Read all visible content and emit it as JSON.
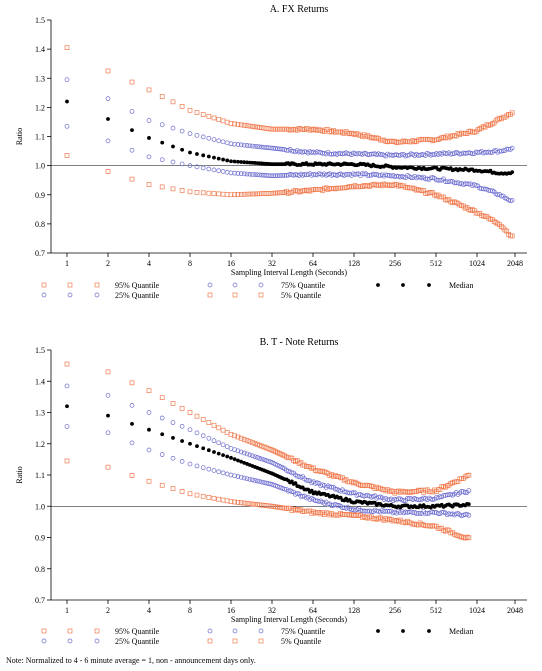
{
  "footnote": "Note: Normalized to 4 - 6 minute average = 1, non - announcement days only.",
  "colors": {
    "q95": "#f07c50",
    "q5": "#f07c50",
    "q25": "#6a6ad0",
    "q75": "#6a6ad0",
    "median": "#000000",
    "axis": "#000000"
  },
  "chart_data": [
    {
      "type": "scatter",
      "title": "A. FX Returns",
      "xlabel": "Sampling Interval Length (Seconds)",
      "ylabel": "Ratio",
      "x_scale": "log2",
      "x_ticks": [
        "1",
        "2",
        "4",
        "8",
        "16",
        "32",
        "64",
        "128",
        "256",
        "512",
        "1024",
        "2048"
      ],
      "y_ticks": [
        "0.7",
        "0.8",
        "0.9",
        "1.0",
        "1.1",
        "1.2",
        "1.3",
        "1.4",
        "1.5"
      ],
      "ylim": [
        0.7,
        1.5
      ],
      "xlim": [
        0.85,
        2300
      ],
      "reference_line": 1.0,
      "legend": [
        "95% Quantile",
        "25% Quantile",
        "75% Quantile",
        "5% Quantile",
        "Median"
      ],
      "x_max": 1900,
      "series": [
        {
          "name": "95% Quantile",
          "key": "q95",
          "marker": "square",
          "points": [
            [
              1,
              1.405
            ],
            [
              2,
              1.325
            ],
            [
              4,
              1.26
            ],
            [
              8,
              1.19
            ],
            [
              16,
              1.145
            ],
            [
              32,
              1.125
            ],
            [
              64,
              1.125
            ],
            [
              128,
              1.11
            ],
            [
              256,
              1.08
            ],
            [
              512,
              1.09
            ],
            [
              1024,
              1.12
            ],
            [
              1500,
              1.16
            ],
            [
              1900,
              1.185
            ]
          ]
        },
        {
          "name": "75% Quantile",
          "key": "q75",
          "marker": "circle",
          "points": [
            [
              1,
              1.295
            ],
            [
              2,
              1.23
            ],
            [
              4,
              1.155
            ],
            [
              8,
              1.11
            ],
            [
              16,
              1.075
            ],
            [
              32,
              1.06
            ],
            [
              64,
              1.045
            ],
            [
              128,
              1.04
            ],
            [
              256,
              1.035
            ],
            [
              512,
              1.04
            ],
            [
              1024,
              1.045
            ],
            [
              1500,
              1.05
            ],
            [
              1900,
              1.06
            ]
          ]
        },
        {
          "name": "Median",
          "key": "median",
          "marker": "dot",
          "points": [
            [
              1,
              1.22
            ],
            [
              2,
              1.16
            ],
            [
              4,
              1.095
            ],
            [
              8,
              1.045
            ],
            [
              16,
              1.015
            ],
            [
              32,
              1.005
            ],
            [
              64,
              1.005
            ],
            [
              128,
              1.005
            ],
            [
              256,
              0.995
            ],
            [
              512,
              0.99
            ],
            [
              1024,
              0.985
            ],
            [
              1500,
              0.975
            ],
            [
              1900,
              0.975
            ]
          ]
        },
        {
          "name": "25% Quantile",
          "key": "q25",
          "marker": "circle",
          "points": [
            [
              1,
              1.135
            ],
            [
              2,
              1.085
            ],
            [
              4,
              1.03
            ],
            [
              8,
              1.0
            ],
            [
              16,
              0.975
            ],
            [
              32,
              0.965
            ],
            [
              64,
              0.97
            ],
            [
              128,
              0.97
            ],
            [
              256,
              0.965
            ],
            [
              512,
              0.955
            ],
            [
              1024,
              0.93
            ],
            [
              1500,
              0.9
            ],
            [
              1900,
              0.875
            ]
          ]
        },
        {
          "name": "5% Quantile",
          "key": "q5",
          "marker": "square",
          "points": [
            [
              1,
              1.035
            ],
            [
              2,
              0.98
            ],
            [
              4,
              0.935
            ],
            [
              8,
              0.91
            ],
            [
              16,
              0.9
            ],
            [
              32,
              0.905
            ],
            [
              64,
              0.915
            ],
            [
              128,
              0.93
            ],
            [
              256,
              0.935
            ],
            [
              512,
              0.9
            ],
            [
              1024,
              0.84
            ],
            [
              1500,
              0.8
            ],
            [
              1900,
              0.75
            ]
          ]
        }
      ]
    },
    {
      "type": "scatter",
      "title": "B. T - Note Returns",
      "xlabel": "Sampling Interval Length (Seconds)",
      "ylabel": "Ratio",
      "x_scale": "log2",
      "x_ticks": [
        "1",
        "2",
        "4",
        "8",
        "16",
        "32",
        "64",
        "128",
        "256",
        "512",
        "1024",
        "2048"
      ],
      "y_ticks": [
        "0.7",
        "0.8",
        "0.9",
        "1.0",
        "1.1",
        "1.2",
        "1.3",
        "1.4",
        "1.5"
      ],
      "ylim": [
        0.7,
        1.5
      ],
      "xlim": [
        0.85,
        2300
      ],
      "reference_line": 1.0,
      "legend": [
        "95% Quantile",
        "25% Quantile",
        "75% Quantile",
        "5% Quantile",
        "Median"
      ],
      "x_max": 900,
      "series": [
        {
          "name": "95% Quantile",
          "key": "q95",
          "marker": "square",
          "points": [
            [
              1,
              1.455
            ],
            [
              2,
              1.43
            ],
            [
              4,
              1.37
            ],
            [
              8,
              1.3
            ],
            [
              16,
              1.23
            ],
            [
              32,
              1.18
            ],
            [
              64,
              1.12
            ],
            [
              128,
              1.075
            ],
            [
              256,
              1.045
            ],
            [
              512,
              1.05
            ],
            [
              900,
              1.1
            ]
          ]
        },
        {
          "name": "75% Quantile",
          "key": "q75",
          "marker": "circle",
          "points": [
            [
              1,
              1.385
            ],
            [
              2,
              1.355
            ],
            [
              4,
              1.3
            ],
            [
              8,
              1.245
            ],
            [
              16,
              1.185
            ],
            [
              32,
              1.14
            ],
            [
              64,
              1.075
            ],
            [
              128,
              1.04
            ],
            [
              256,
              1.02
            ],
            [
              512,
              1.025
            ],
            [
              900,
              1.05
            ]
          ]
        },
        {
          "name": "Median",
          "key": "median",
          "marker": "dot",
          "points": [
            [
              1,
              1.32
            ],
            [
              2,
              1.29
            ],
            [
              4,
              1.245
            ],
            [
              8,
              1.2
            ],
            [
              16,
              1.155
            ],
            [
              32,
              1.105
            ],
            [
              64,
              1.045
            ],
            [
              128,
              1.015
            ],
            [
              256,
              1.0
            ],
            [
              512,
              1.0
            ],
            [
              900,
              1.005
            ]
          ]
        },
        {
          "name": "25% Quantile",
          "key": "q25",
          "marker": "circle",
          "points": [
            [
              1,
              1.255
            ],
            [
              2,
              1.235
            ],
            [
              4,
              1.18
            ],
            [
              8,
              1.135
            ],
            [
              16,
              1.1
            ],
            [
              32,
              1.07
            ],
            [
              64,
              1.02
            ],
            [
              128,
              0.99
            ],
            [
              256,
              0.98
            ],
            [
              512,
              0.98
            ],
            [
              900,
              0.97
            ]
          ]
        },
        {
          "name": "5% Quantile",
          "key": "q5",
          "marker": "square",
          "points": [
            [
              1,
              1.145
            ],
            [
              2,
              1.125
            ],
            [
              4,
              1.08
            ],
            [
              8,
              1.04
            ],
            [
              16,
              1.015
            ],
            [
              32,
              1.0
            ],
            [
              64,
              0.98
            ],
            [
              128,
              0.97
            ],
            [
              256,
              0.955
            ],
            [
              512,
              0.935
            ],
            [
              900,
              0.895
            ]
          ]
        }
      ]
    }
  ]
}
